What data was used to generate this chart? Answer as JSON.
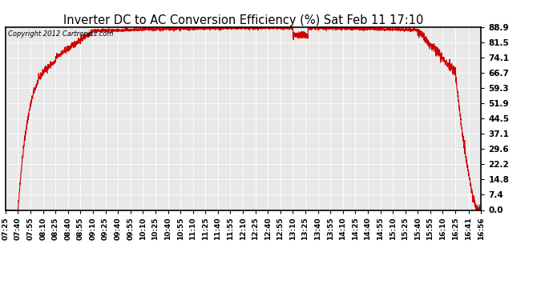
{
  "title": "Inverter DC to AC Conversion Efficiency (%) Sat Feb 11 17:10",
  "copyright": "Copyright 2012 Cartronics.com",
  "line_color": "#cc0000",
  "bg_color": "#ffffff",
  "plot_bg_color": "#e8e8e8",
  "grid_color": "#ffffff",
  "yticks": [
    0.0,
    7.4,
    14.8,
    22.2,
    29.6,
    37.1,
    44.5,
    51.9,
    59.3,
    66.7,
    74.1,
    81.5,
    88.9
  ],
  "ymin": 0.0,
  "ymax": 88.9,
  "time_start_minutes": 445,
  "time_end_minutes": 1016,
  "xtick_labels": [
    "07:25",
    "07:40",
    "07:55",
    "08:10",
    "08:25",
    "08:40",
    "08:55",
    "09:10",
    "09:25",
    "09:40",
    "09:55",
    "10:10",
    "10:25",
    "10:40",
    "10:55",
    "11:10",
    "11:25",
    "11:40",
    "11:55",
    "12:10",
    "12:25",
    "12:40",
    "12:55",
    "13:10",
    "13:25",
    "13:40",
    "13:55",
    "14:10",
    "14:25",
    "14:40",
    "14:55",
    "15:10",
    "15:25",
    "15:40",
    "15:55",
    "16:10",
    "16:25",
    "16:41",
    "16:56"
  ],
  "xtick_minutes": [
    445,
    460,
    475,
    490,
    505,
    520,
    535,
    550,
    565,
    580,
    595,
    610,
    625,
    640,
    655,
    670,
    685,
    700,
    715,
    730,
    745,
    760,
    775,
    790,
    805,
    820,
    835,
    850,
    865,
    880,
    895,
    910,
    925,
    940,
    955,
    970,
    985,
    1001,
    1016
  ]
}
